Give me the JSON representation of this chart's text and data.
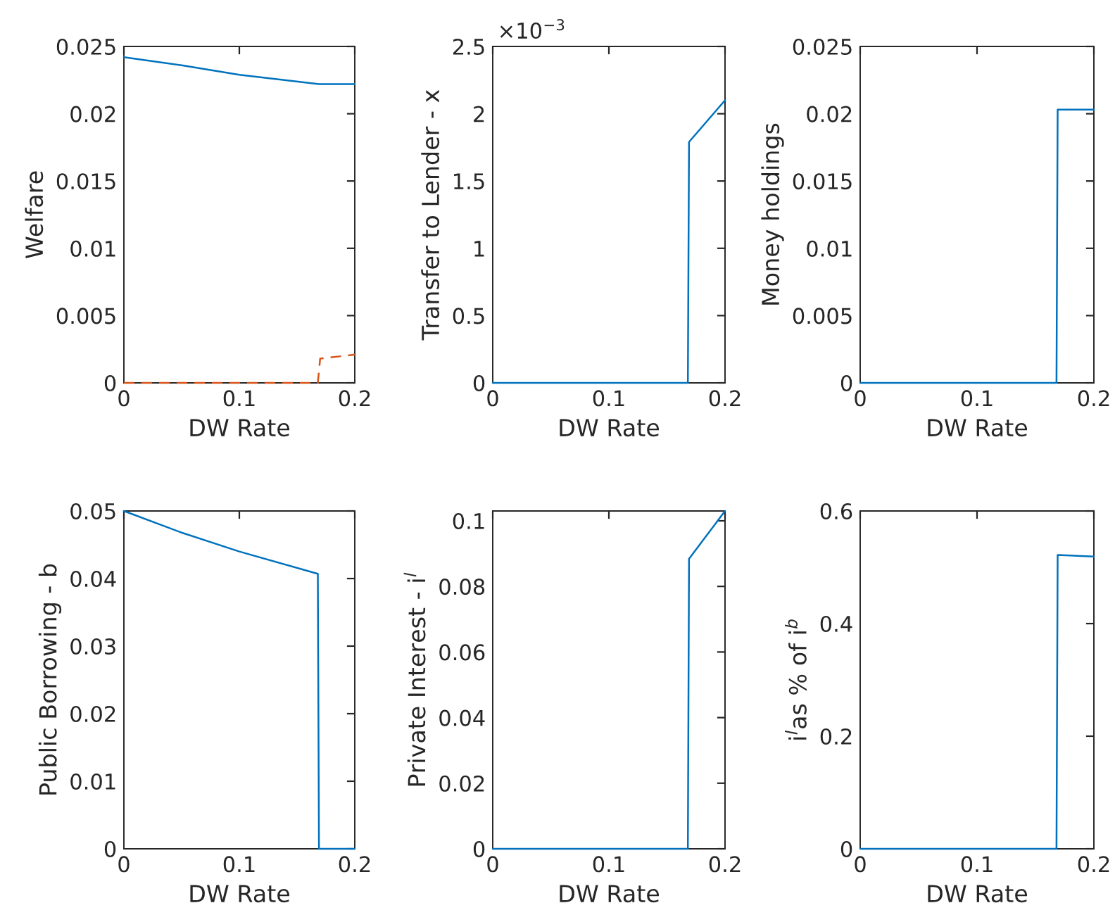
{
  "chart_data": [
    {
      "type": "line",
      "xlabel": "DW Rate",
      "ylabel": "Welfare",
      "xlim": [
        0,
        0.2
      ],
      "xticks": [
        0,
        0.1,
        0.2
      ],
      "ylim": [
        0,
        0.025
      ],
      "yticks": [
        0,
        0.005,
        0.01,
        0.015,
        0.02,
        0.025
      ],
      "grid": false,
      "legend": false,
      "series": [
        {
          "color": "#0072bd",
          "line_style": "solid",
          "x": [
            0,
            0.05,
            0.1,
            0.169,
            0.2
          ],
          "values": [
            0.0242,
            0.0236,
            0.0229,
            0.0222,
            0.0222
          ]
        },
        {
          "color": "#d95319",
          "line_style": "dashed",
          "x": [
            0,
            0.168,
            0.17,
            0.2
          ],
          "values": [
            0,
            0,
            0.0018,
            0.0021
          ]
        }
      ]
    },
    {
      "type": "line",
      "xlabel": "DW Rate",
      "ylabel": "Transfer to Lender - x",
      "annotations": [
        "×10$^{−3}$"
      ],
      "xlim": [
        0,
        0.2
      ],
      "xticks": [
        0,
        0.1,
        0.2
      ],
      "ylim": [
        0,
        2.5
      ],
      "yticks": [
        0,
        0.5,
        1,
        1.5,
        2,
        2.5
      ],
      "grid": false,
      "legend": false,
      "series": [
        {
          "color": "#0072bd",
          "line_style": "solid",
          "x": [
            0,
            0.168,
            0.169,
            0.2
          ],
          "values": [
            0,
            0,
            1.79,
            2.1
          ]
        }
      ]
    },
    {
      "type": "line",
      "xlabel": "DW Rate",
      "ylabel": "Money holdings",
      "xlim": [
        0,
        0.2
      ],
      "xticks": [
        0,
        0.1,
        0.2
      ],
      "ylim": [
        0,
        0.025
      ],
      "yticks": [
        0,
        0.005,
        0.01,
        0.015,
        0.02,
        0.025
      ],
      "grid": false,
      "legend": false,
      "series": [
        {
          "color": "#0072bd",
          "line_style": "solid",
          "x": [
            0,
            0.168,
            0.169,
            0.2
          ],
          "values": [
            0,
            0,
            0.0203,
            0.0203
          ]
        }
      ]
    },
    {
      "type": "line",
      "xlabel": "DW Rate",
      "ylabel": "Public Borrowing - b",
      "xlim": [
        0,
        0.2
      ],
      "xticks": [
        0,
        0.1,
        0.2
      ],
      "ylim": [
        0,
        0.05
      ],
      "yticks": [
        0,
        0.01,
        0.02,
        0.03,
        0.04,
        0.05
      ],
      "grid": false,
      "legend": false,
      "series": [
        {
          "color": "#0072bd",
          "line_style": "solid",
          "x": [
            0,
            0.05,
            0.1,
            0.168,
            0.169,
            0.2
          ],
          "values": [
            0.05,
            0.0468,
            0.044,
            0.0407,
            0,
            0
          ]
        }
      ]
    },
    {
      "type": "line",
      "xlabel": "DW Rate",
      "ylabel": "Private Interest - i$^{l}$",
      "xlim": [
        0,
        0.2
      ],
      "xticks": [
        0,
        0.1,
        0.2
      ],
      "ylim": [
        0,
        0.103
      ],
      "yticks": [
        0,
        0.02,
        0.04,
        0.06,
        0.08,
        0.1
      ],
      "grid": false,
      "legend": false,
      "series": [
        {
          "color": "#0072bd",
          "line_style": "solid",
          "x": [
            0,
            0.168,
            0.169,
            0.2
          ],
          "values": [
            0,
            0,
            0.0884,
            0.103
          ]
        }
      ]
    },
    {
      "type": "line",
      "xlabel": "DW Rate",
      "ylabel": "i$^{l}$as % of i$^{b}$",
      "xlim": [
        0,
        0.2
      ],
      "xticks": [
        0,
        0.1,
        0.2
      ],
      "ylim": [
        0,
        0.6
      ],
      "yticks": [
        0,
        0.2,
        0.4,
        0.6
      ],
      "grid": false,
      "legend": false,
      "series": [
        {
          "color": "#0072bd",
          "line_style": "solid",
          "x": [
            0,
            0.168,
            0.169,
            0.2
          ],
          "values": [
            0,
            0,
            0.522,
            0.519
          ]
        }
      ]
    }
  ]
}
